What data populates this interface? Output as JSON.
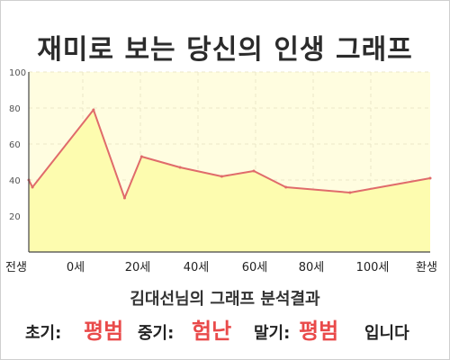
{
  "page": {
    "title": "재미로 보는 당신의 인생 그래프"
  },
  "chart_data": {
    "type": "area",
    "x_labels": [
      "전생",
      "0세",
      "20세",
      "40세",
      "60세",
      "80세",
      "100세",
      "환생"
    ],
    "y_ticks": [
      20,
      40,
      60,
      80,
      100
    ],
    "ylim": [
      0,
      100
    ],
    "grid": true,
    "series": [
      {
        "x": [
          -0.17,
          0.97,
          20,
          29.7,
          35,
          47,
          60,
          70,
          80,
          100,
          125
        ],
        "y": [
          40,
          36,
          79,
          30,
          53,
          47,
          42,
          45,
          36,
          33,
          41
        ]
      }
    ]
  },
  "result": {
    "heading": "김대선님의 그래프 분석결과",
    "early_label": "초기:",
    "early_value": "평범",
    "mid_label": "중기:",
    "mid_value": "험난",
    "late_label": "말기:",
    "late_value": "평범",
    "suffix": "입니다"
  },
  "colors": {
    "plot_bg": "#fffde0",
    "area_fill": "#fdfcaf",
    "line": "#e06b6b",
    "accent": "#e94a4a"
  }
}
